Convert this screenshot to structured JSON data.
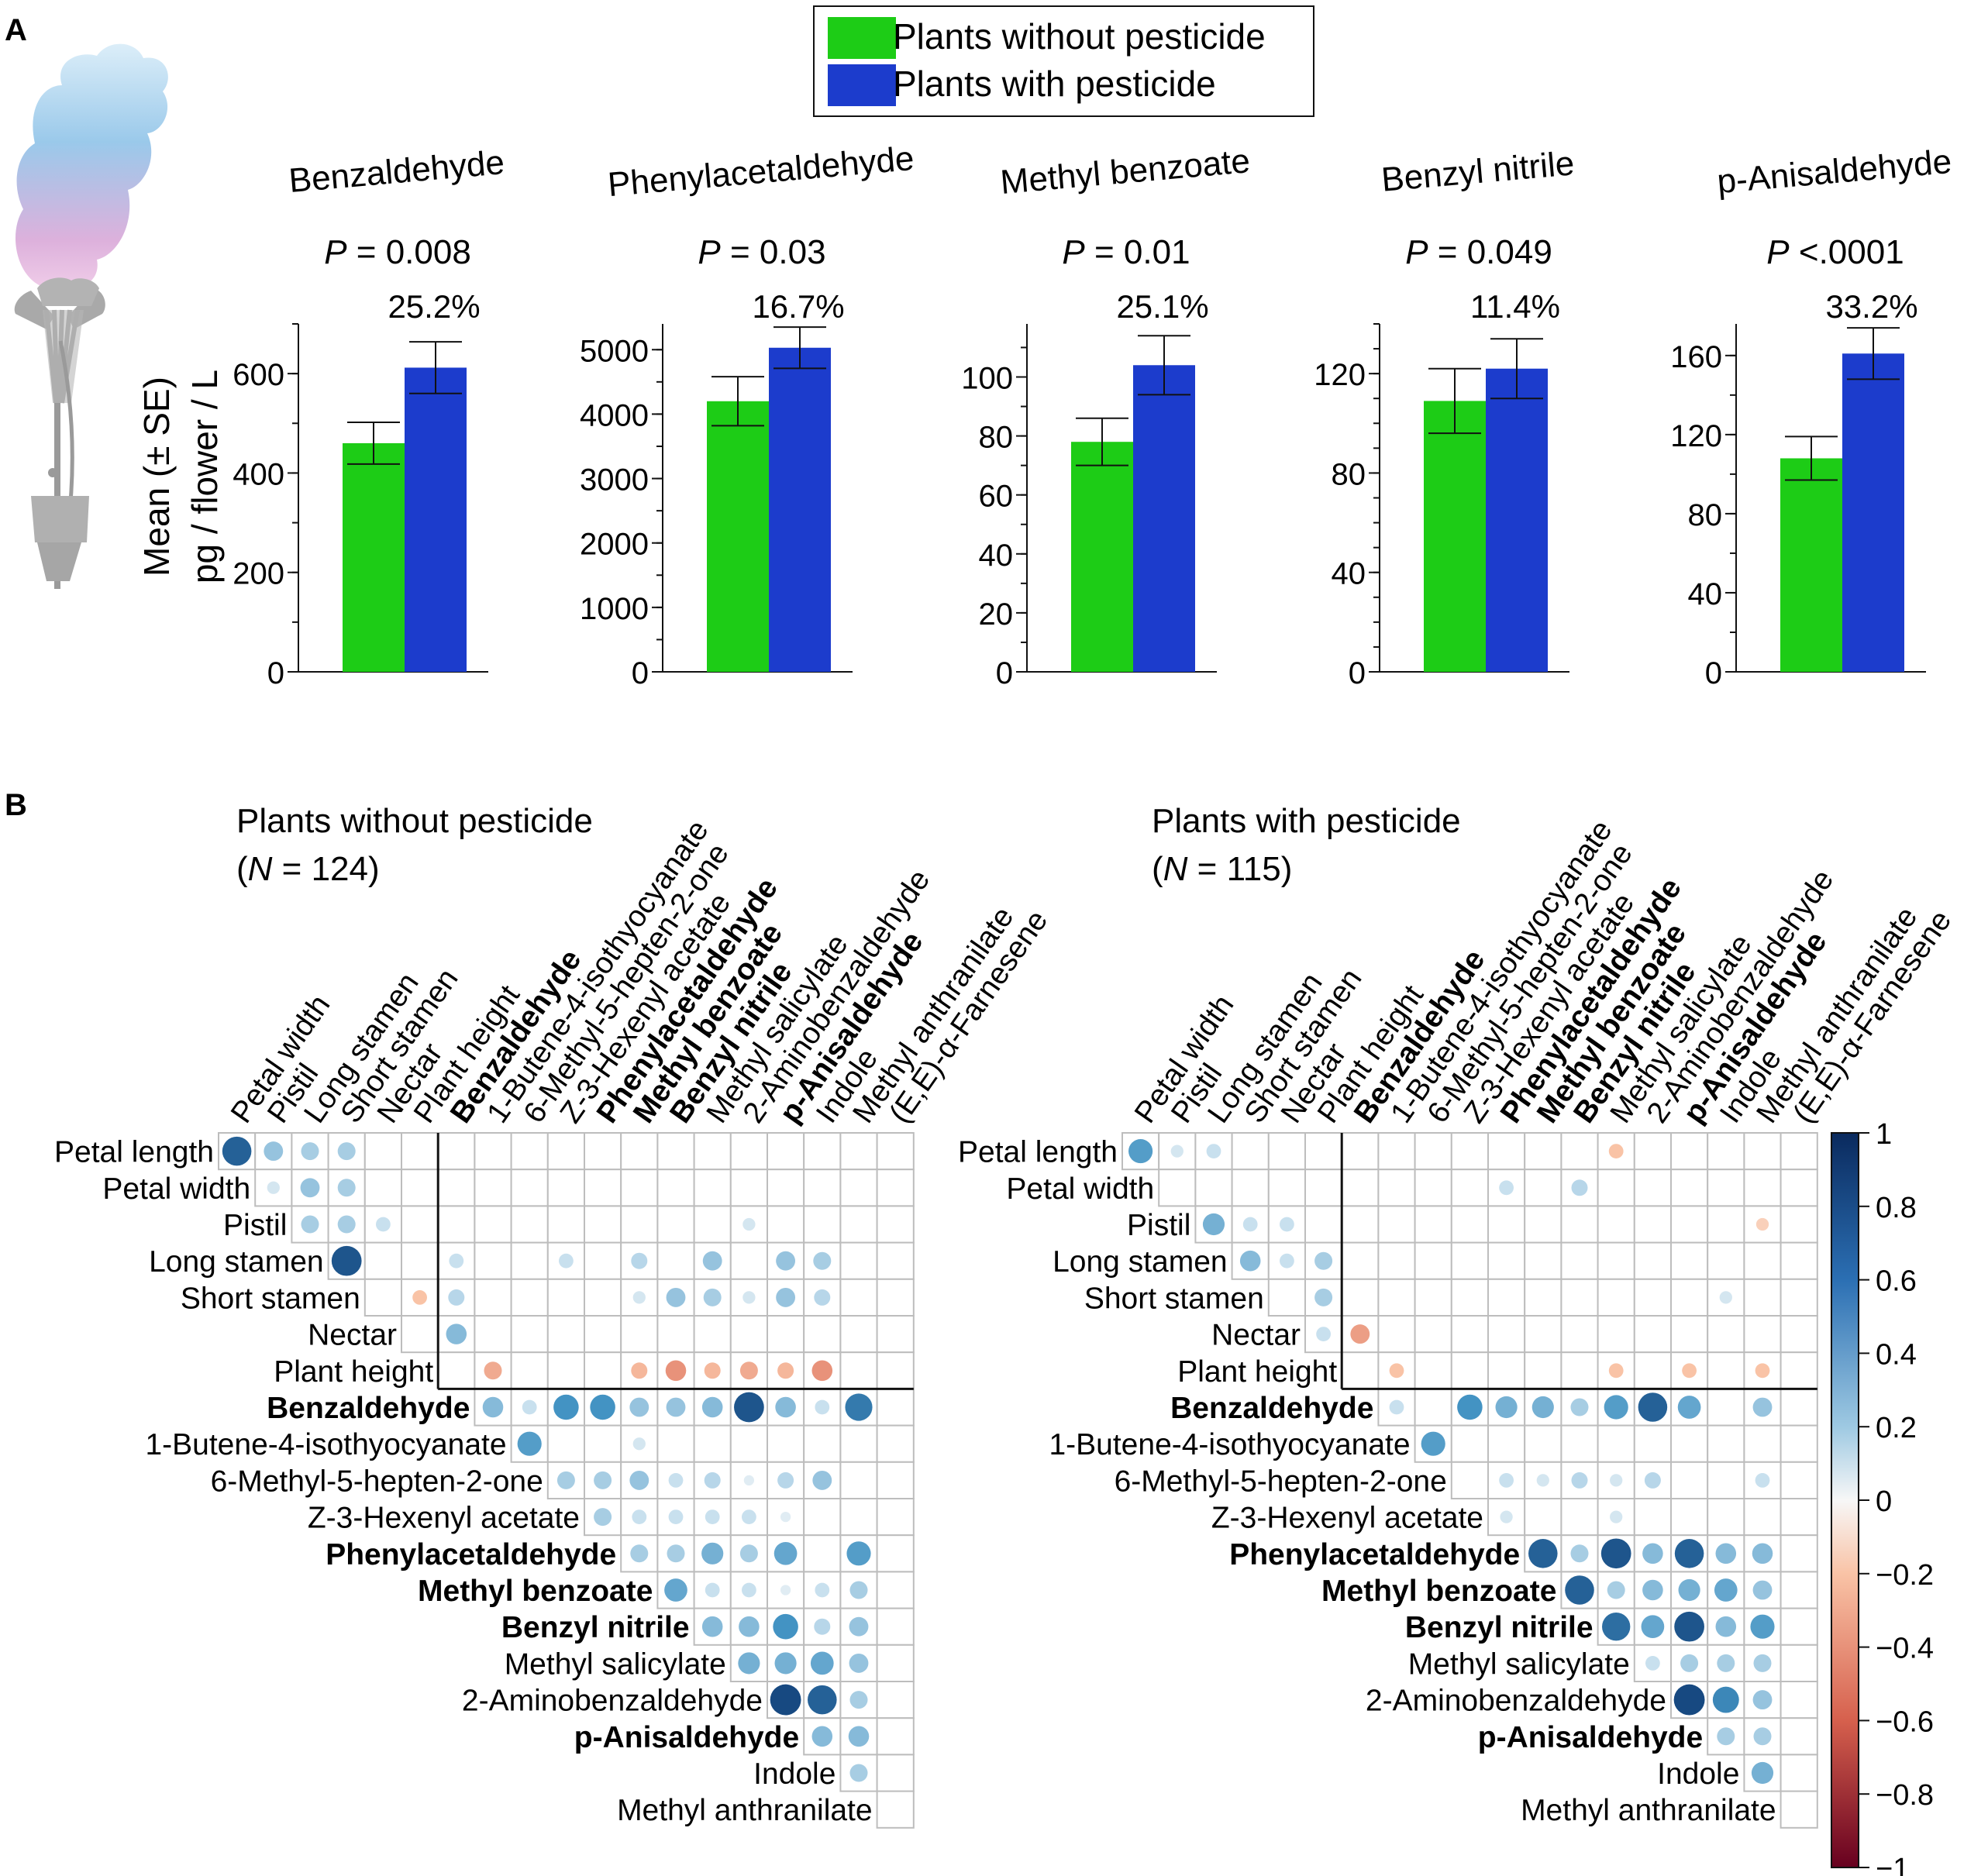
{
  "panel_labels": {
    "a": "A",
    "b": "B"
  },
  "legend": {
    "items": [
      {
        "label": "Plants without pesticide",
        "color": "#1dcc16"
      },
      {
        "label": "Plants with pesticide",
        "color": "#1c3ccc"
      }
    ]
  },
  "y_axis_label": {
    "line1": "Mean (± SE)",
    "line2": "pg / flower / L"
  },
  "chart_data": {
    "type": "bar",
    "subcharts": [
      {
        "compound": "Benzaldehyde",
        "p_prefix": "P",
        "p_text": "= 0.008",
        "pct": "25.2%",
        "ylim": [
          0,
          700
        ],
        "ticks": [
          0,
          200,
          400,
          600
        ],
        "minor_step": 100,
        "values": [
          460,
          612
        ],
        "se": [
          42,
          52
        ]
      },
      {
        "compound": "Phenylacetaldehyde",
        "p_prefix": "P",
        "p_text": "= 0.03",
        "pct": "16.7%",
        "ylim": [
          0,
          5400
        ],
        "ticks": [
          0,
          1000,
          2000,
          3000,
          4000,
          5000
        ],
        "minor_step": 500,
        "values": [
          4200,
          5030
        ],
        "se": [
          380,
          320
        ]
      },
      {
        "compound": "Methyl benzoate",
        "p_prefix": "P",
        "p_text": "= 0.01",
        "pct": "25.1%",
        "ylim": [
          0,
          118
        ],
        "ticks": [
          0,
          20,
          40,
          60,
          80,
          100
        ],
        "minor_step": 10,
        "values": [
          78,
          104
        ],
        "se": [
          8,
          10
        ]
      },
      {
        "compound": "Benzyl nitrile",
        "p_prefix": "P",
        "p_text": "= 0.049",
        "pct": "11.4%",
        "ylim": [
          0,
          140
        ],
        "ticks": [
          0,
          40,
          80,
          120
        ],
        "minor_step": 10,
        "values": [
          109,
          122
        ],
        "se": [
          13,
          12
        ]
      },
      {
        "compound": "p-Anisaldehyde",
        "p_prefix": "P",
        "p_text": "<.0001",
        "pct": "33.2%",
        "ylim": [
          0,
          176
        ],
        "ticks": [
          0,
          40,
          80,
          120,
          160
        ],
        "minor_step": 20,
        "values": [
          108,
          161
        ],
        "se": [
          11,
          13
        ]
      }
    ]
  },
  "correlation": {
    "panels": [
      {
        "title": "Plants without pesticide",
        "n_prefix": "(",
        "n_symbol": "N",
        "n_text": " = 124)"
      },
      {
        "title": "Plants with pesticide",
        "n_prefix": "(",
        "n_symbol": "N",
        "n_text": " = 115)"
      }
    ],
    "row_labels": [
      "Petal length",
      "Petal width",
      "Pistil",
      "Long stamen",
      "Short stamen",
      "Nectar",
      "Plant height",
      "Benzaldehyde",
      "1-Butene-4-isothyocyanate",
      "6-Methyl-5-hepten-2-one",
      "Z-3-Hexenyl acetate",
      "Phenylacetaldehyde",
      "Methyl benzoate",
      "Benzyl nitrile",
      "Methyl salicylate",
      "2-Aminobenzaldehyde",
      "p-Anisaldehyde",
      "Indole",
      "Methyl anthranilate"
    ],
    "col_labels": [
      "Petal width",
      "Pistil",
      "Long stamen",
      "Short stamen",
      "Nectar",
      "Plant height",
      "Benzaldehyde",
      "1-Butene-4-isothyocyanate",
      "6-Methyl-5-hepten-2-one",
      "Z-3-Hexenyl acetate",
      "Phenylacetaldehyde",
      "Methyl benzoate",
      "Benzyl nitrile",
      "Methyl salicylate",
      "2-Aminobenzaldehyde",
      "p-Anisaldehyde",
      "Indole",
      "Methyl anthranilate",
      "(E,E)-α-Farnesene"
    ],
    "bold_labels": [
      "Benzaldehyde",
      "Phenylacetaldehyde",
      "Methyl benzoate",
      "Benzyl nitrile",
      "p-Anisaldehyde"
    ],
    "colorbar_ticks": [
      "1",
      "0.8",
      "0.6",
      "0.4",
      "0.2",
      "0",
      "−0.2",
      "−0.4",
      "−0.6",
      "−0.8",
      "−1"
    ],
    "matrix_without": [
      [
        0.8,
        0.35,
        0.3,
        0.3,
        0,
        0,
        0,
        0,
        0,
        0,
        0,
        0,
        0,
        0,
        0,
        0,
        0,
        0,
        0
      ],
      [
        0,
        0.15,
        0.35,
        0.3,
        0,
        0,
        0,
        0,
        0,
        0,
        0,
        0,
        0,
        0,
        0,
        0,
        0,
        0,
        0
      ],
      [
        0,
        0,
        0.3,
        0.3,
        0.2,
        0,
        0,
        0,
        0,
        0,
        0,
        0,
        0,
        0,
        0.15,
        0,
        0,
        0,
        0
      ],
      [
        0,
        0,
        0,
        0.85,
        0,
        0,
        0.2,
        0,
        0,
        0.2,
        0,
        0.25,
        0,
        0.35,
        0,
        0.35,
        0.3,
        0,
        0
      ],
      [
        0,
        0,
        0,
        0,
        0,
        -0.2,
        0.25,
        0,
        0,
        0,
        0,
        0.15,
        0.35,
        0.3,
        0.15,
        0.35,
        0.25,
        0,
        0
      ],
      [
        0,
        0,
        0,
        0,
        0,
        0,
        0.4,
        0,
        0,
        0,
        0,
        0,
        0,
        0,
        0,
        0,
        0,
        0,
        0
      ],
      [
        0,
        0,
        0,
        0,
        0,
        0,
        0,
        -0.3,
        0,
        0,
        0,
        -0.25,
        -0.4,
        -0.25,
        -0.3,
        -0.25,
        -0.4,
        0,
        0
      ],
      [
        0,
        0,
        0,
        0,
        0,
        0,
        0,
        0.4,
        0.2,
        0.6,
        0.6,
        0.35,
        0.35,
        0.4,
        0.85,
        0.4,
        0.2,
        0.7,
        0
      ],
      [
        0,
        0,
        0,
        0,
        0,
        0,
        0,
        0.15,
        0.55,
        0,
        0,
        0.15,
        0,
        0,
        0,
        0,
        0,
        0,
        0
      ],
      [
        0,
        0,
        0,
        0,
        0,
        0,
        0,
        0,
        0,
        0.3,
        0.3,
        0.35,
        0.2,
        0.25,
        0.1,
        0.25,
        0.35,
        0,
        0
      ],
      [
        0,
        0,
        0,
        0,
        0,
        0,
        0,
        0,
        0,
        0.2,
        0.3,
        0.2,
        0.2,
        0.2,
        0.2,
        0.1,
        0,
        0,
        0
      ],
      [
        0,
        0,
        0,
        0,
        0,
        0,
        0,
        0,
        0,
        0,
        0.2,
        0.3,
        0.3,
        0.45,
        0.3,
        0.5,
        0,
        0.55,
        0
      ],
      [
        0,
        0,
        0,
        0,
        0,
        0,
        0,
        0,
        0,
        0,
        0,
        0.2,
        0.5,
        0.2,
        0.2,
        0.1,
        0.2,
        0.3,
        0
      ],
      [
        0,
        0,
        0,
        0,
        0,
        0,
        0,
        0,
        0,
        0,
        0,
        0,
        0.3,
        0.4,
        0.4,
        0.6,
        0.25,
        0.35,
        0
      ],
      [
        0,
        0,
        0,
        0,
        0,
        0,
        0,
        0,
        0,
        0,
        0,
        0,
        0,
        0.35,
        0.45,
        0.45,
        0.5,
        0.35,
        0
      ],
      [
        0,
        0,
        0,
        0,
        0,
        0,
        0,
        0,
        0,
        0,
        0,
        0,
        0,
        0,
        0.5,
        0.9,
        0.8,
        0.3,
        0
      ],
      [
        0,
        0,
        0,
        0,
        0,
        0,
        0,
        0,
        0,
        0,
        0,
        0,
        0,
        0,
        0,
        0.6,
        0.4,
        0.4,
        0
      ],
      [
        0,
        0,
        0,
        0,
        0,
        0,
        0,
        0,
        0,
        0,
        0,
        0,
        0,
        0,
        0,
        0,
        0.6,
        0.3,
        0
      ],
      [
        0,
        0,
        0,
        0,
        0,
        0,
        0,
        0,
        0,
        0,
        0,
        0,
        0,
        0,
        0,
        0,
        0,
        0,
        0
      ]
    ],
    "matrix_with": [
      [
        0.55,
        0.15,
        0.2,
        0,
        0,
        0,
        0,
        0,
        0,
        0,
        0,
        0,
        0,
        -0.2,
        0,
        0,
        0,
        0,
        0
      ],
      [
        0,
        0,
        0,
        0,
        0,
        0,
        0,
        0,
        0,
        0,
        0.2,
        0,
        0.25,
        0,
        0,
        0,
        0,
        0,
        0
      ],
      [
        0,
        0.6,
        0.45,
        0.2,
        0.2,
        0,
        0,
        0,
        0,
        0,
        0,
        0,
        0,
        0,
        0,
        0,
        0,
        -0.15,
        0
      ],
      [
        0,
        0,
        0.8,
        0.4,
        0.2,
        0.3,
        0,
        0,
        0,
        0,
        0,
        0,
        0,
        0,
        0,
        0,
        0,
        0,
        0
      ],
      [
        0,
        0,
        0,
        0.3,
        0,
        0.3,
        0,
        0,
        0,
        0,
        0,
        0,
        0,
        0,
        0,
        0,
        0.15,
        0,
        0
      ],
      [
        0,
        0,
        0,
        0,
        0,
        0.2,
        -0.35,
        0,
        0,
        0,
        0,
        0,
        0,
        0,
        0,
        0,
        0,
        0,
        0
      ],
      [
        0,
        0,
        0,
        0,
        0,
        0,
        0,
        -0.2,
        0,
        0,
        0,
        0,
        0,
        -0.2,
        0,
        -0.2,
        0,
        -0.2,
        0
      ],
      [
        0,
        0,
        0,
        0,
        0,
        0,
        0,
        0.2,
        0,
        0.6,
        0.45,
        0.45,
        0.3,
        0.55,
        0.8,
        0.5,
        0,
        0.35,
        0
      ],
      [
        0,
        0,
        0,
        0,
        0,
        0,
        0,
        0,
        0.55,
        0,
        0,
        0,
        0,
        0,
        0,
        0,
        0,
        0,
        0
      ],
      [
        0,
        0,
        0,
        0,
        0,
        0,
        0,
        0,
        0,
        0,
        0.2,
        0.15,
        0.25,
        0.15,
        0.25,
        0,
        0,
        0.2,
        0
      ],
      [
        0,
        0,
        0,
        0,
        0,
        0,
        0,
        0,
        0,
        0.2,
        0.15,
        0,
        0,
        0.15,
        0,
        0,
        0,
        0,
        0
      ],
      [
        0,
        0,
        0,
        0,
        0,
        0,
        0,
        0,
        0,
        0,
        0.3,
        0.8,
        0.3,
        0.85,
        0.4,
        0.8,
        0.4,
        0.4,
        0
      ],
      [
        0,
        0,
        0,
        0,
        0,
        0,
        0,
        0,
        0,
        0,
        0,
        0.15,
        0.8,
        0.3,
        0.4,
        0.45,
        0.5,
        0.35,
        0
      ],
      [
        0,
        0,
        0,
        0,
        0,
        0,
        0,
        0,
        0,
        0,
        0,
        0,
        0.25,
        0.75,
        0.5,
        0.85,
        0.4,
        0.55,
        0
      ],
      [
        0,
        0,
        0,
        0,
        0,
        0,
        0,
        0,
        0,
        0,
        0,
        0,
        0,
        0.1,
        0.2,
        0.3,
        0.3,
        0.3,
        0
      ],
      [
        0,
        0,
        0,
        0,
        0,
        0,
        0,
        0,
        0,
        0,
        0,
        0,
        0,
        0,
        0.55,
        0.9,
        0.65,
        0.35,
        0
      ],
      [
        0,
        0,
        0,
        0,
        0,
        0,
        0,
        0,
        0,
        0,
        0,
        0,
        0,
        0,
        0,
        0.5,
        0.3,
        0.3,
        0
      ],
      [
        0,
        0,
        0,
        0,
        0,
        0,
        0,
        0,
        0,
        0,
        0,
        0,
        0,
        0,
        0,
        0,
        0.55,
        0.45,
        0
      ],
      [
        0,
        0,
        0,
        0,
        0,
        0,
        0,
        0,
        0,
        0,
        0,
        0,
        0,
        0,
        0,
        0,
        0,
        0.1,
        0
      ]
    ]
  }
}
